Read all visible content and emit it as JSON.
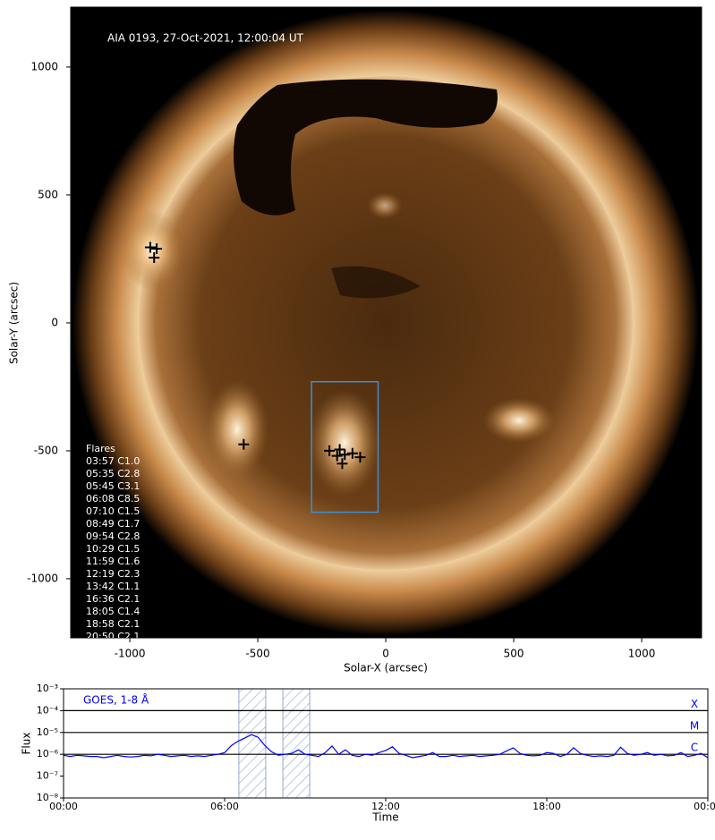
{
  "chart_data": [
    {
      "type": "scatter",
      "title": "AIA 0193, 27-Oct-2021, 12:00:04 UT",
      "xlabel": "Solar-X (arcsec)",
      "ylabel": "Solar-Y (arcsec)",
      "xlim": [
        -1231,
        1234
      ],
      "ylim": [
        -1231,
        1234
      ],
      "xticks": [
        -1000,
        -500,
        0,
        500,
        1000
      ],
      "yticks": [
        -1000,
        -500,
        0,
        500,
        1000
      ],
      "x": [
        -920,
        -895,
        -905,
        -555,
        -220,
        -180,
        -160,
        -170,
        -130,
        -100,
        -190
      ],
      "y": [
        295,
        290,
        255,
        -475,
        -500,
        -495,
        -515,
        -550,
        -510,
        -525,
        -520
      ],
      "color": "#000000",
      "legend_title": "Flares",
      "flares": [
        "03:57 C1.0",
        "05:35 C2.8",
        "05:45 C3.1",
        "06:08 C8.5",
        "07:10 C1.5",
        "08:49 C1.7",
        "09:54 C2.8",
        "10:29 C1.5",
        "11:59 C1.6",
        "12:19 C2.3",
        "13:42 C1.1",
        "16:36 C2.1",
        "18:05 C1.4",
        "18:58 C2.1",
        "20:50 C2.1"
      ],
      "box": {
        "xlim": [
          -290,
          -30
        ],
        "ylim": [
          -740,
          -230
        ],
        "color": "#3a8fd8"
      }
    },
    {
      "type": "line",
      "title": "GOES, 1-8 Å",
      "xlabel": "Time",
      "ylabel": "Flux",
      "log": true,
      "xlim": [
        0,
        24
      ],
      "ylim": [
        1e-08,
        0.001
      ],
      "xticks": [
        {
          "value": 0,
          "label": "00:00"
        },
        {
          "value": 6,
          "label": "06:00"
        },
        {
          "value": 12,
          "label": "12:00"
        },
        {
          "value": 18,
          "label": "18:00"
        },
        {
          "value": 24,
          "label": "00:00"
        }
      ],
      "yticks": [
        {
          "value": 1e-08,
          "label": "10⁻⁸"
        },
        {
          "value": 1e-07,
          "label": "10⁻⁷"
        },
        {
          "value": 1e-06,
          "label": "10⁻⁶"
        },
        {
          "value": 1e-05,
          "label": "10⁻⁵"
        },
        {
          "value": 0.0001,
          "label": "10⁻⁴"
        },
        {
          "value": 0.001,
          "label": "10⁻³"
        }
      ],
      "levels": [
        {
          "value": 0.0001,
          "label": "X"
        },
        {
          "value": 1e-05,
          "label": "M"
        },
        {
          "value": 1e-06,
          "label": "C"
        }
      ],
      "shaded": [
        [
          6.53,
          7.53
        ],
        [
          8.17,
          9.17
        ]
      ],
      "color": "#0000ff",
      "x": [
        0,
        0.25,
        0.5,
        0.75,
        1,
        1.25,
        1.5,
        1.75,
        2,
        2.25,
        2.5,
        2.75,
        3,
        3.25,
        3.5,
        3.75,
        4,
        4.25,
        4.5,
        4.75,
        5,
        5.25,
        5.5,
        5.75,
        6,
        6.25,
        6.5,
        6.75,
        7,
        7.25,
        7.5,
        7.75,
        8,
        8.25,
        8.5,
        8.75,
        9,
        9.25,
        9.5,
        9.75,
        10,
        10.25,
        10.5,
        10.75,
        11,
        11.25,
        11.5,
        11.75,
        12,
        12.25,
        12.5,
        12.75,
        13,
        13.25,
        13.5,
        13.75,
        14,
        14.25,
        14.5,
        14.75,
        15,
        15.25,
        15.5,
        15.75,
        16,
        16.25,
        16.5,
        16.75,
        17,
        17.25,
        17.5,
        17.75,
        18,
        18.25,
        18.5,
        18.75,
        19,
        19.25,
        19.5,
        19.75,
        20,
        20.25,
        20.5,
        20.75,
        21,
        21.25,
        21.5,
        21.75,
        22,
        22.25,
        22.5,
        22.75,
        23,
        23.25,
        23.5,
        23.75,
        24
      ],
      "values": [
        9e-07,
        8e-07,
        9e-07,
        8.5e-07,
        8e-07,
        8e-07,
        7e-07,
        8e-07,
        9e-07,
        8e-07,
        7.5e-07,
        8e-07,
        9e-07,
        8.5e-07,
        1e-06,
        9e-07,
        8e-07,
        8.5e-07,
        9e-07,
        8e-07,
        8.5e-07,
        8e-07,
        9e-07,
        1e-06,
        1.2e-06,
        2.5e-06,
        4e-06,
        5.5e-06,
        8e-06,
        6e-06,
        2.5e-06,
        1.3e-06,
        9e-07,
        1e-06,
        1.1e-06,
        1.6e-06,
        1e-06,
        9e-07,
        8e-07,
        1.2e-06,
        2.4e-06,
        1e-06,
        1.6e-06,
        9e-07,
        8e-07,
        1e-06,
        9e-07,
        1.2e-06,
        1.5e-06,
        2.2e-06,
        1.1e-06,
        9e-07,
        7e-07,
        8e-07,
        9e-07,
        1.2e-06,
        8e-07,
        8e-07,
        9e-07,
        8e-07,
        8.5e-07,
        9e-07,
        8e-07,
        8.5e-07,
        9e-07,
        1e-06,
        1.4e-06,
        2e-06,
        1.1e-06,
        9e-07,
        8.5e-07,
        9e-07,
        1.2e-06,
        1.1e-06,
        8e-07,
        1e-06,
        2e-06,
        1.1e-06,
        9e-07,
        8e-07,
        8.5e-07,
        8e-07,
        9e-07,
        2.1e-06,
        1.1e-06,
        9e-07,
        1e-06,
        1.2e-06,
        9e-07,
        1e-06,
        8.5e-07,
        9e-07,
        1.2e-06,
        8e-07,
        9e-07,
        1.1e-06,
        7e-07
      ]
    }
  ]
}
